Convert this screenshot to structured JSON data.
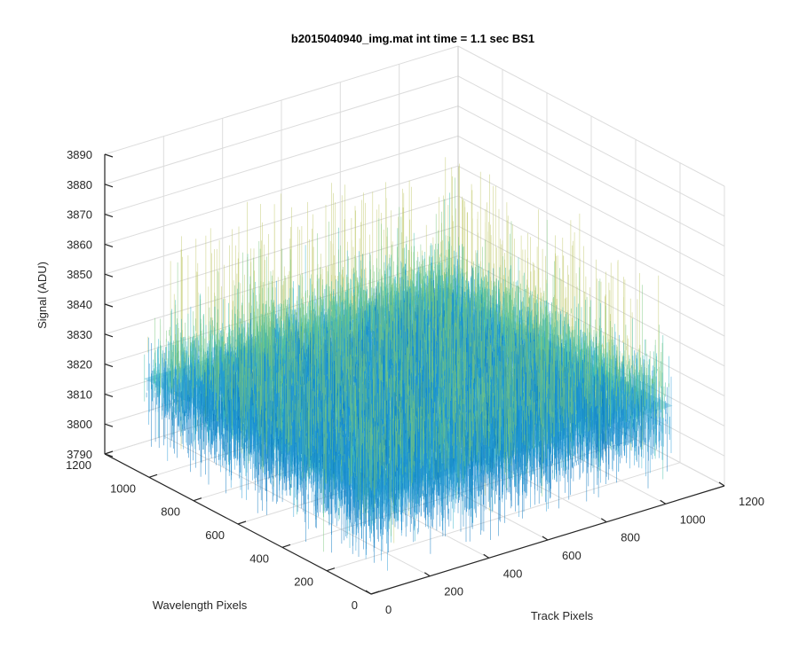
{
  "chart_data": {
    "type": "surface",
    "title": "b2015040940_img.mat int time = 1.1 sec   BS1",
    "xlabel": "Track Pixels",
    "ylabel": "Wavelength Pixels",
    "zlabel": "Signal (ADU)",
    "xlim": [
      0,
      1200
    ],
    "ylim": [
      0,
      1200
    ],
    "zlim": [
      3790,
      3890
    ],
    "xticks": [
      "0",
      "200",
      "400",
      "600",
      "800",
      "1000",
      "1200"
    ],
    "yticks": [
      "0",
      "200",
      "400",
      "600",
      "800",
      "1000",
      "1200"
    ],
    "zticks": [
      "3790",
      "3800",
      "3810",
      "3820",
      "3830",
      "3840",
      "3850",
      "3860",
      "3870",
      "3880",
      "3890"
    ],
    "data_extent": {
      "x": [
        0,
        1024
      ],
      "y": [
        0,
        1024
      ]
    },
    "signal_mean": 3822,
    "signal_range": [
      3795,
      3880
    ],
    "grid": true,
    "colormap": [
      "#0072bd",
      "#1f96d6",
      "#2cb0c8",
      "#3fbfa7",
      "#7ac77b",
      "#c0c86a"
    ]
  }
}
